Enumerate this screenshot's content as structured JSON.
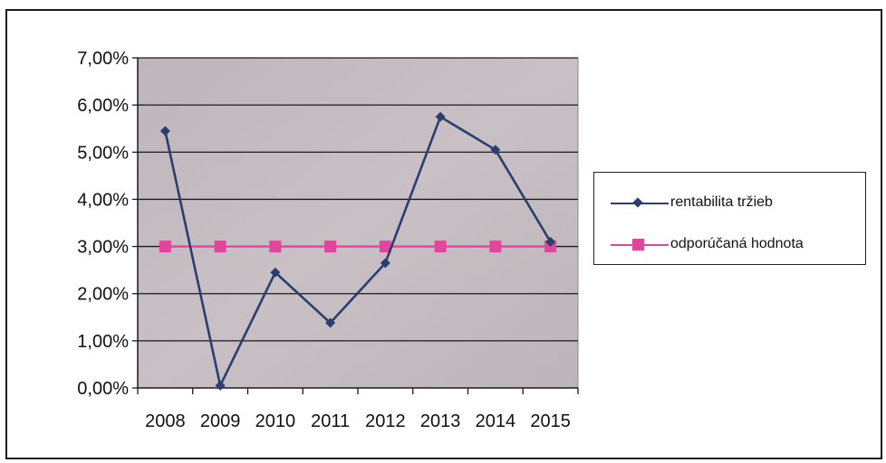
{
  "chart_data": {
    "type": "line",
    "categories": [
      "2008",
      "2009",
      "2010",
      "2011",
      "2012",
      "2013",
      "2014",
      "2015"
    ],
    "y_ticks": [
      "0,00%",
      "1,00%",
      "2,00%",
      "3,00%",
      "4,00%",
      "5,00%",
      "6,00%",
      "7,00%"
    ],
    "ylim": [
      0,
      7
    ],
    "y_unit": "%",
    "grid": true,
    "legend_position": "right",
    "series": [
      {
        "name": "rentabilita tržieb",
        "color": "#2b3f6e",
        "marker": "diamond",
        "values": [
          5.45,
          0.05,
          2.45,
          1.38,
          2.65,
          5.75,
          5.05,
          3.1
        ]
      },
      {
        "name": "odporúčaná hodnota",
        "color": "#e0479c",
        "marker": "square",
        "values": [
          3.0,
          3.0,
          3.0,
          3.0,
          3.0,
          3.0,
          3.0,
          3.0
        ]
      }
    ]
  }
}
